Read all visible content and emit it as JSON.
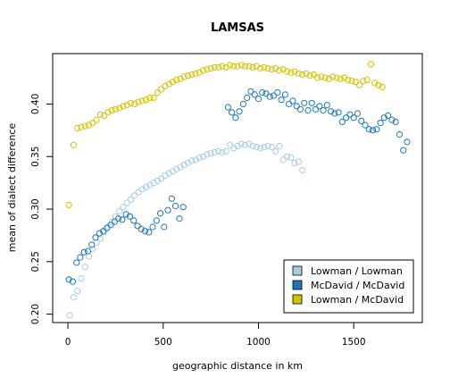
{
  "chart_data": {
    "type": "scatter",
    "title": "LAMSAS",
    "xlabel": "geographic distance in km",
    "ylabel": "mean of dialect difference",
    "xlim": [
      -80,
      1860
    ],
    "ylim": [
      0.192,
      0.448
    ],
    "x_ticks": [
      0,
      500,
      1000,
      1500
    ],
    "y_ticks": [
      0.2,
      0.25,
      0.3,
      0.35,
      0.4
    ],
    "x_tick_labels": [
      "0",
      "500",
      "1000",
      "1500"
    ],
    "y_tick_labels": [
      "0.20",
      "0.25",
      "0.30",
      "0.35",
      "0.40"
    ],
    "legend_position": "bottom-right",
    "series": [
      {
        "name": "Lowman / Lowman",
        "color": "#a6cee3",
        "points": [
          [
            10,
            0.199
          ],
          [
            30,
            0.216
          ],
          [
            50,
            0.222
          ],
          [
            70,
            0.234
          ],
          [
            90,
            0.245
          ],
          [
            110,
            0.255
          ],
          [
            130,
            0.262
          ],
          [
            150,
            0.268
          ],
          [
            170,
            0.272
          ],
          [
            190,
            0.278
          ],
          [
            210,
            0.283
          ],
          [
            230,
            0.288
          ],
          [
            250,
            0.293
          ],
          [
            270,
            0.298
          ],
          [
            290,
            0.302
          ],
          [
            310,
            0.306
          ],
          [
            330,
            0.309
          ],
          [
            350,
            0.313
          ],
          [
            370,
            0.316
          ],
          [
            390,
            0.319
          ],
          [
            410,
            0.321
          ],
          [
            430,
            0.323
          ],
          [
            450,
            0.325
          ],
          [
            470,
            0.327
          ],
          [
            490,
            0.329
          ],
          [
            510,
            0.332
          ],
          [
            530,
            0.334
          ],
          [
            550,
            0.336
          ],
          [
            570,
            0.338
          ],
          [
            590,
            0.34
          ],
          [
            610,
            0.342
          ],
          [
            630,
            0.344
          ],
          [
            650,
            0.346
          ],
          [
            670,
            0.347
          ],
          [
            690,
            0.349
          ],
          [
            710,
            0.35
          ],
          [
            730,
            0.352
          ],
          [
            750,
            0.353
          ],
          [
            770,
            0.354
          ],
          [
            790,
            0.355
          ],
          [
            810,
            0.354
          ],
          [
            830,
            0.355
          ],
          [
            850,
            0.361
          ],
          [
            870,
            0.358
          ],
          [
            890,
            0.36
          ],
          [
            910,
            0.362
          ],
          [
            930,
            0.361
          ],
          [
            950,
            0.362
          ],
          [
            970,
            0.36
          ],
          [
            990,
            0.359
          ],
          [
            1010,
            0.358
          ],
          [
            1030,
            0.359
          ],
          [
            1050,
            0.36
          ],
          [
            1070,
            0.359
          ],
          [
            1090,
            0.355
          ],
          [
            1110,
            0.36
          ],
          [
            1130,
            0.347
          ],
          [
            1150,
            0.35
          ],
          [
            1170,
            0.349
          ],
          [
            1190,
            0.344
          ],
          [
            1210,
            0.345
          ],
          [
            1230,
            0.337
          ]
        ]
      },
      {
        "name": "McDavid / McDavid",
        "color": "#1f78b4",
        "points": [
          [
            5,
            0.233
          ],
          [
            25,
            0.231
          ],
          [
            45,
            0.249
          ],
          [
            65,
            0.254
          ],
          [
            85,
            0.259
          ],
          [
            105,
            0.26
          ],
          [
            125,
            0.266
          ],
          [
            145,
            0.273
          ],
          [
            165,
            0.277
          ],
          [
            185,
            0.279
          ],
          [
            205,
            0.282
          ],
          [
            225,
            0.285
          ],
          [
            245,
            0.288
          ],
          [
            265,
            0.291
          ],
          [
            285,
            0.29
          ],
          [
            305,
            0.295
          ],
          [
            325,
            0.293
          ],
          [
            345,
            0.289
          ],
          [
            365,
            0.284
          ],
          [
            385,
            0.281
          ],
          [
            405,
            0.279
          ],
          [
            425,
            0.278
          ],
          [
            445,
            0.283
          ],
          [
            465,
            0.289
          ],
          [
            485,
            0.296
          ],
          [
            505,
            0.283
          ],
          [
            525,
            0.299
          ],
          [
            545,
            0.31
          ],
          [
            565,
            0.303
          ],
          [
            585,
            0.291
          ],
          [
            605,
            0.302
          ],
          [
            840,
            0.397
          ],
          [
            860,
            0.392
          ],
          [
            880,
            0.387
          ],
          [
            900,
            0.393
          ],
          [
            920,
            0.4
          ],
          [
            940,
            0.406
          ],
          [
            960,
            0.412
          ],
          [
            980,
            0.409
          ],
          [
            1000,
            0.405
          ],
          [
            1020,
            0.411
          ],
          [
            1040,
            0.41
          ],
          [
            1060,
            0.407
          ],
          [
            1080,
            0.408
          ],
          [
            1100,
            0.411
          ],
          [
            1120,
            0.404
          ],
          [
            1140,
            0.409
          ],
          [
            1160,
            0.4
          ],
          [
            1180,
            0.403
          ],
          [
            1200,
            0.398
          ],
          [
            1220,
            0.395
          ],
          [
            1240,
            0.401
          ],
          [
            1260,
            0.394
          ],
          [
            1280,
            0.401
          ],
          [
            1300,
            0.395
          ],
          [
            1320,
            0.398
          ],
          [
            1340,
            0.394
          ],
          [
            1360,
            0.399
          ],
          [
            1380,
            0.393
          ],
          [
            1400,
            0.391
          ],
          [
            1420,
            0.392
          ],
          [
            1440,
            0.383
          ],
          [
            1460,
            0.387
          ],
          [
            1480,
            0.39
          ],
          [
            1500,
            0.387
          ],
          [
            1520,
            0.391
          ],
          [
            1540,
            0.384
          ],
          [
            1560,
            0.38
          ],
          [
            1580,
            0.376
          ],
          [
            1600,
            0.375
          ],
          [
            1620,
            0.376
          ],
          [
            1640,
            0.382
          ],
          [
            1660,
            0.387
          ],
          [
            1680,
            0.389
          ],
          [
            1700,
            0.385
          ],
          [
            1720,
            0.383
          ],
          [
            1740,
            0.371
          ],
          [
            1760,
            0.356
          ],
          [
            1780,
            0.364
          ]
        ]
      },
      {
        "name": "Lowman / McDavid",
        "color": "#d4c200",
        "points": [
          [
            5,
            0.304
          ],
          [
            30,
            0.361
          ],
          [
            50,
            0.377
          ],
          [
            70,
            0.378
          ],
          [
            90,
            0.379
          ],
          [
            110,
            0.38
          ],
          [
            130,
            0.382
          ],
          [
            150,
            0.385
          ],
          [
            170,
            0.39
          ],
          [
            190,
            0.389
          ],
          [
            210,
            0.392
          ],
          [
            230,
            0.394
          ],
          [
            250,
            0.395
          ],
          [
            270,
            0.396
          ],
          [
            290,
            0.398
          ],
          [
            310,
            0.399
          ],
          [
            330,
            0.401
          ],
          [
            350,
            0.4
          ],
          [
            370,
            0.402
          ],
          [
            390,
            0.403
          ],
          [
            410,
            0.404
          ],
          [
            430,
            0.406
          ],
          [
            450,
            0.406
          ],
          [
            470,
            0.411
          ],
          [
            490,
            0.414
          ],
          [
            510,
            0.417
          ],
          [
            530,
            0.419
          ],
          [
            550,
            0.421
          ],
          [
            570,
            0.423
          ],
          [
            590,
            0.424
          ],
          [
            610,
            0.426
          ],
          [
            630,
            0.427
          ],
          [
            650,
            0.428
          ],
          [
            670,
            0.429
          ],
          [
            690,
            0.43
          ],
          [
            710,
            0.432
          ],
          [
            730,
            0.433
          ],
          [
            750,
            0.434
          ],
          [
            770,
            0.435
          ],
          [
            790,
            0.435
          ],
          [
            810,
            0.436
          ],
          [
            830,
            0.435
          ],
          [
            850,
            0.437
          ],
          [
            870,
            0.436
          ],
          [
            890,
            0.436
          ],
          [
            910,
            0.437
          ],
          [
            930,
            0.436
          ],
          [
            950,
            0.436
          ],
          [
            970,
            0.435
          ],
          [
            990,
            0.436
          ],
          [
            1010,
            0.434
          ],
          [
            1030,
            0.435
          ],
          [
            1050,
            0.434
          ],
          [
            1070,
            0.433
          ],
          [
            1090,
            0.434
          ],
          [
            1110,
            0.432
          ],
          [
            1130,
            0.433
          ],
          [
            1150,
            0.431
          ],
          [
            1170,
            0.43
          ],
          [
            1190,
            0.431
          ],
          [
            1210,
            0.429
          ],
          [
            1230,
            0.428
          ],
          [
            1250,
            0.429
          ],
          [
            1270,
            0.427
          ],
          [
            1290,
            0.428
          ],
          [
            1310,
            0.425
          ],
          [
            1330,
            0.426
          ],
          [
            1350,
            0.425
          ],
          [
            1370,
            0.424
          ],
          [
            1390,
            0.426
          ],
          [
            1410,
            0.425
          ],
          [
            1430,
            0.424
          ],
          [
            1450,
            0.425
          ],
          [
            1470,
            0.423
          ],
          [
            1490,
            0.422
          ],
          [
            1510,
            0.421
          ],
          [
            1530,
            0.418
          ],
          [
            1550,
            0.422
          ],
          [
            1570,
            0.423
          ],
          [
            1590,
            0.438
          ],
          [
            1610,
            0.42
          ],
          [
            1630,
            0.418
          ],
          [
            1650,
            0.416
          ]
        ]
      }
    ]
  }
}
